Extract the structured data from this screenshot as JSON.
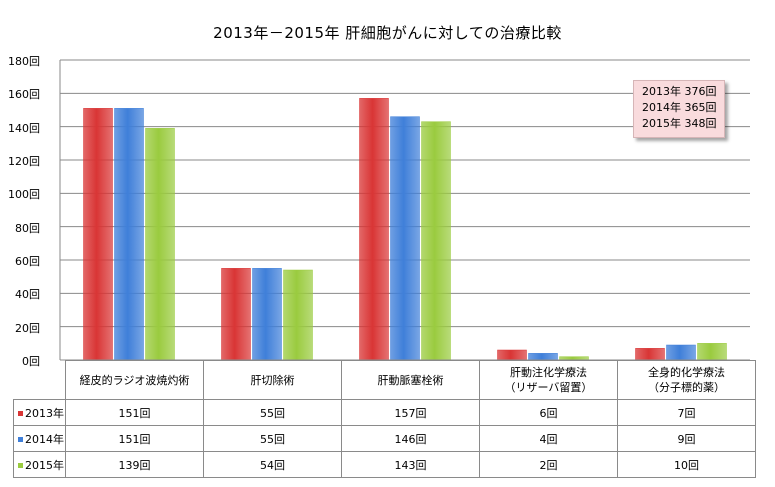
{
  "chart_data": {
    "type": "bar",
    "title": "2013年－2015年 肝細胞がんに対しての治療比較",
    "categories": [
      "経皮的ラジオ波焼灼術",
      "肝切除術",
      "肝動脈塞栓術",
      "肝動注化学療法\n（リザーバ留置）",
      "全身的化学療法\n（分子標的薬）"
    ],
    "series": [
      {
        "name": "2013年",
        "values": [
          151,
          55,
          157,
          6,
          7
        ],
        "labels": [
          "151回",
          "55回",
          "157回",
          "6回",
          "7回"
        ]
      },
      {
        "name": "2014年",
        "values": [
          151,
          55,
          146,
          4,
          9
        ],
        "labels": [
          "151回",
          "55回",
          "146回",
          "4回",
          "9回"
        ]
      },
      {
        "name": "2015年",
        "values": [
          139,
          54,
          143,
          2,
          10
        ],
        "labels": [
          "139回",
          "54回",
          "143回",
          "2回",
          "10回"
        ]
      }
    ],
    "ylim": [
      0,
      180
    ],
    "yticks": [
      "0回",
      "20回",
      "40回",
      "60回",
      "80回",
      "100回",
      "120回",
      "140回",
      "160回",
      "180回"
    ],
    "colors": [
      "#d93535",
      "#3f7fd9",
      "#9acb3f"
    ],
    "annotation": [
      "2013年 376回",
      "2014年 365回",
      "2015年 348回"
    ],
    "grid": true,
    "legend": "data-table"
  }
}
